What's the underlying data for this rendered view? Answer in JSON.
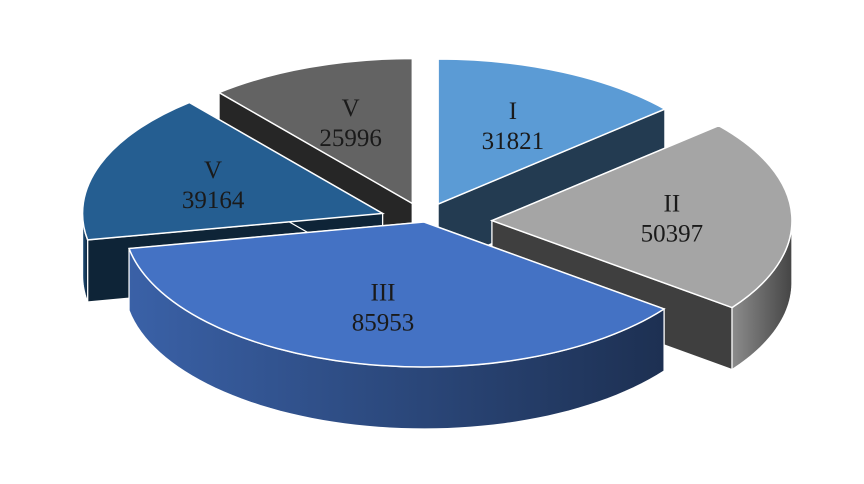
{
  "chart_data": {
    "type": "pie",
    "style": "3d-exploded",
    "legend": "none",
    "slices": [
      {
        "label": "I",
        "value": 31821,
        "color": "#5b9bd5"
      },
      {
        "label": "II",
        "value": 50397,
        "color": "#a5a5a5"
      },
      {
        "label": "III",
        "value": 85953,
        "color": "#4472c4"
      },
      {
        "label": "V",
        "value": 39164,
        "color": "#255e91"
      },
      {
        "label": "V",
        "value": 25996,
        "color": "#636363"
      }
    ]
  }
}
